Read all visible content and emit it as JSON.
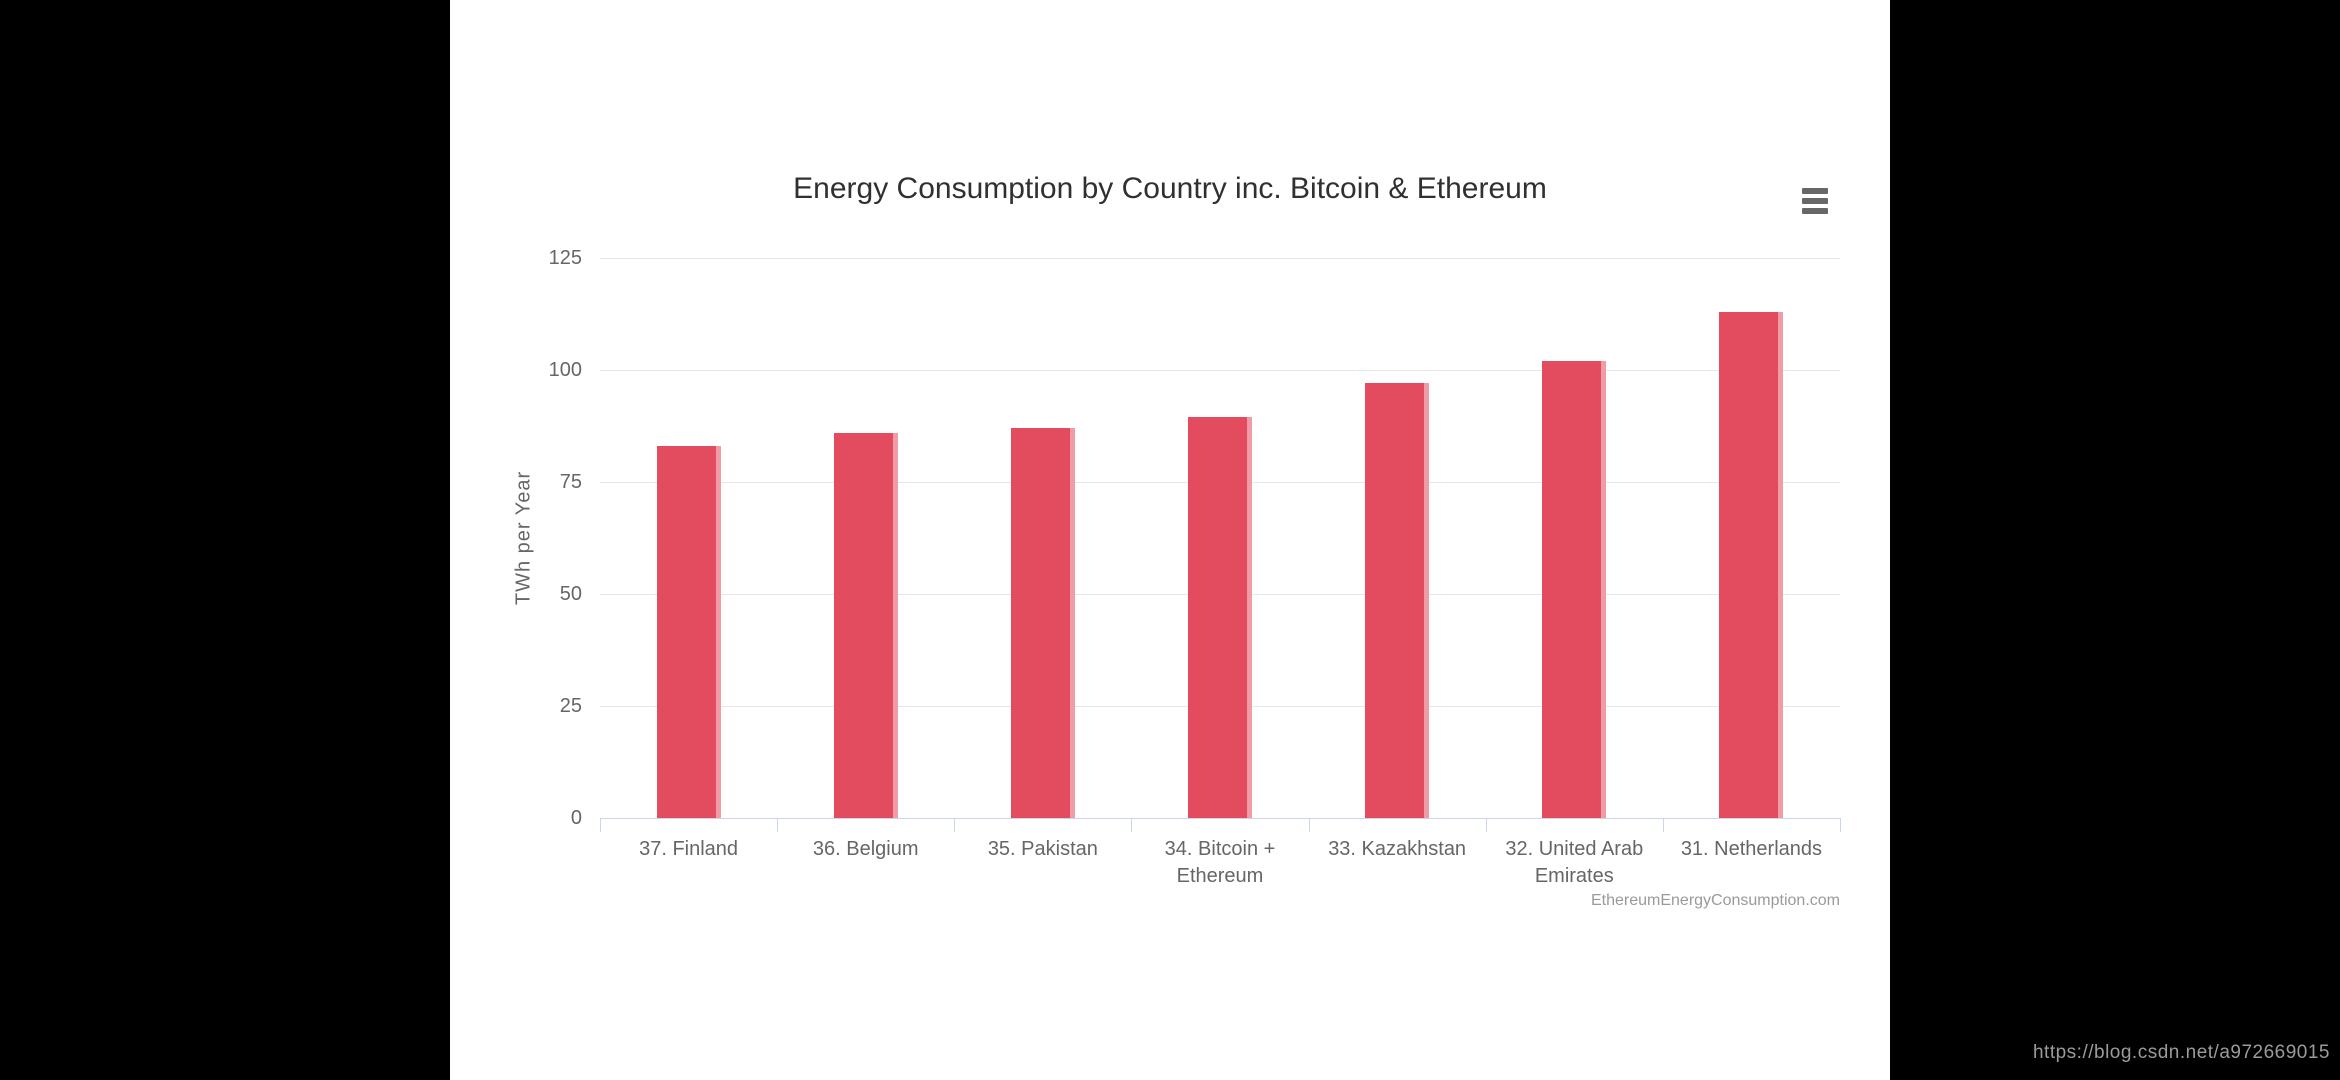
{
  "page": {
    "watermark": "https://blog.csdn.net/a972669015"
  },
  "chart": {
    "menu_icon": "hamburger-menu-icon",
    "colors": {
      "bar": "#e34b5f",
      "gridline": "#e6e6e6",
      "axis_line": "#ccd6eb",
      "label_text": "#666666",
      "title_text": "#303030",
      "credit_text": "#9a9a9a",
      "panel_background": "#ffffff",
      "letterbox_background": "#000000"
    }
  },
  "chart_data": {
    "type": "bar",
    "title": "Energy Consumption by Country inc. Bitcoin & Ethereum",
    "categories": [
      "37. Finland",
      "36. Belgium",
      "35. Pakistan",
      "34. Bitcoin + Ethereum",
      "33. Kazakhstan",
      "32. United Arab Emirates",
      "31. Netherlands"
    ],
    "values": [
      83,
      86,
      87,
      89.5,
      97,
      102,
      113
    ],
    "xlabel": "",
    "ylabel": "TWh per Year",
    "ylim": [
      0,
      125
    ],
    "yticks": [
      0,
      25,
      50,
      75,
      100,
      125
    ],
    "grid": true,
    "legend": false,
    "credit": "EthereumEnergyConsumption.com"
  }
}
